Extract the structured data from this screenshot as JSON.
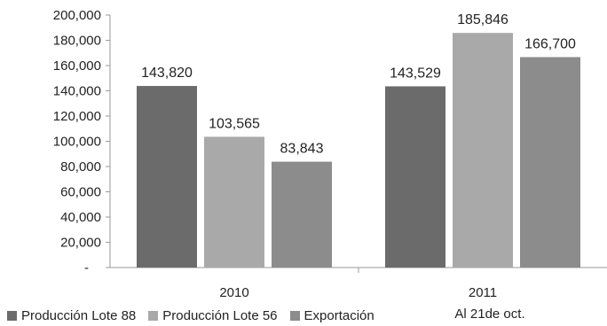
{
  "chart_data": {
    "type": "bar",
    "categories": [
      "2010",
      "2011"
    ],
    "category_sublabels": [
      "",
      "Al 21de oct."
    ],
    "series": [
      {
        "name": "Producción Lote 88",
        "values": [
          143820,
          143529
        ],
        "color": "#6b6b6b"
      },
      {
        "name": "Producción Lote 56",
        "values": [
          103565,
          185846
        ],
        "color": "#a9a9a9"
      },
      {
        "name": "Exportación",
        "values": [
          83843,
          166700
        ],
        "color": "#8c8c8c"
      }
    ],
    "data_labels": [
      [
        "143,820",
        "143,529"
      ],
      [
        "103,565",
        "185,846"
      ],
      [
        "83,843",
        "166,700"
      ]
    ],
    "yticks": [
      "-",
      "20,000",
      "40,000",
      "60,000",
      "80,000",
      "100,000",
      "120,000",
      "140,000",
      "160,000",
      "180,000",
      "200,000"
    ],
    "ylim": [
      0,
      200000
    ],
    "legend_position": "bottom-left",
    "grid": false
  }
}
